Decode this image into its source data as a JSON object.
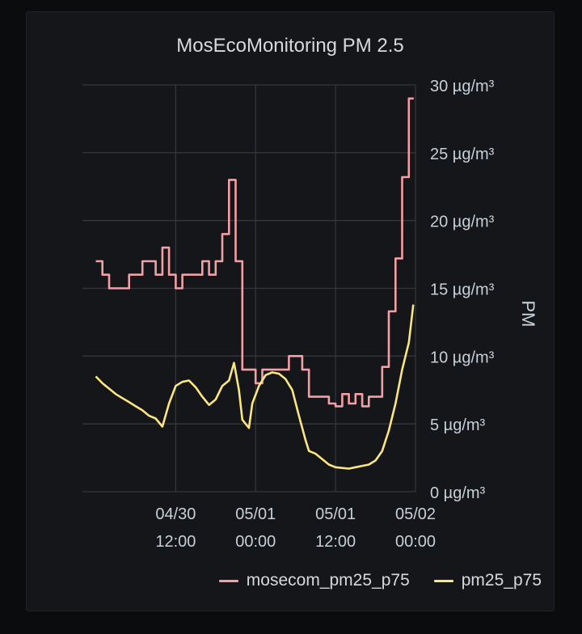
{
  "panel": {
    "title": "MosEcoMonitoring PM 2.5"
  },
  "colors": {
    "mosecom": "#f2a0a5",
    "pm25": "#fbe67f",
    "grid": "#33363b",
    "axis_text": "#c7d0d9"
  },
  "chart_data": {
    "type": "line",
    "title": "MosEcoMonitoring PM 2.5",
    "xlabel": "",
    "ylabel": "PM",
    "unit": "µg/m³",
    "ylim": [
      0,
      30
    ],
    "xlim": [
      "2020-04-29T22:00",
      "2020-05-02T00:00"
    ],
    "y_ticks": [
      "0 µg/m³",
      "5 µg/m³",
      "10 µg/m³",
      "15 µg/m³",
      "20 µg/m³",
      "25 µg/m³",
      "30 µg/m³"
    ],
    "x_ticks": [
      {
        "t": "2020-04-30T12:00",
        "line1": "04/30",
        "line2": "12:00"
      },
      {
        "t": "2020-05-01T00:00",
        "line1": "05/01",
        "line2": "00:00"
      },
      {
        "t": "2020-05-01T12:00",
        "line1": "05/01",
        "line2": "12:00"
      },
      {
        "t": "2020-05-02T00:00",
        "line1": "05/02",
        "line2": "00:00"
      }
    ],
    "grid": true,
    "y_axis_side": "right",
    "legend": "bottom-right",
    "series": [
      {
        "name": "mosecom_pm25_p75",
        "color": "#f2a0a5",
        "step": true,
        "points": [
          [
            "2020-04-30T00:00",
            17
          ],
          [
            "2020-04-30T01:00",
            16
          ],
          [
            "2020-04-30T02:00",
            15
          ],
          [
            "2020-04-30T05:00",
            16
          ],
          [
            "2020-04-30T07:00",
            17
          ],
          [
            "2020-04-30T09:00",
            16
          ],
          [
            "2020-04-30T10:00",
            18
          ],
          [
            "2020-04-30T11:00",
            16
          ],
          [
            "2020-04-30T12:00",
            15
          ],
          [
            "2020-04-30T13:00",
            16
          ],
          [
            "2020-04-30T16:00",
            17
          ],
          [
            "2020-04-30T17:00",
            16
          ],
          [
            "2020-04-30T18:00",
            17
          ],
          [
            "2020-04-30T19:00",
            19
          ],
          [
            "2020-04-30T20:00",
            23
          ],
          [
            "2020-04-30T21:00",
            17
          ],
          [
            "2020-04-30T22:00",
            9
          ],
          [
            "2020-04-30T23:00",
            9
          ],
          [
            "2020-05-01T00:00",
            8
          ],
          [
            "2020-05-01T01:00",
            9
          ],
          [
            "2020-05-01T05:00",
            10
          ],
          [
            "2020-05-01T07:00",
            9
          ],
          [
            "2020-05-01T08:00",
            7
          ],
          [
            "2020-05-01T11:00",
            6.5
          ],
          [
            "2020-05-01T12:00",
            6.3
          ],
          [
            "2020-05-01T13:00",
            7.2
          ],
          [
            "2020-05-01T14:00",
            6.5
          ],
          [
            "2020-05-01T15:00",
            7.2
          ],
          [
            "2020-05-01T16:00",
            6.3
          ],
          [
            "2020-05-01T17:00",
            7
          ],
          [
            "2020-05-01T19:00",
            9.2
          ],
          [
            "2020-05-01T20:00",
            13.3
          ],
          [
            "2020-05-01T21:00",
            17.2
          ],
          [
            "2020-05-01T22:00",
            23.2
          ],
          [
            "2020-05-01T23:00",
            29
          ]
        ],
        "end": "2020-05-01T23:00"
      },
      {
        "name": "pm25_p75",
        "color": "#fbe67f",
        "step": false,
        "points": [
          [
            "2020-04-30T00:00",
            8.5
          ],
          [
            "2020-04-30T01:00",
            8
          ],
          [
            "2020-04-30T02:00",
            7.6
          ],
          [
            "2020-04-30T03:00",
            7.2
          ],
          [
            "2020-04-30T04:00",
            6.9
          ],
          [
            "2020-04-30T05:00",
            6.6
          ],
          [
            "2020-04-30T06:00",
            6.3
          ],
          [
            "2020-04-30T07:00",
            6
          ],
          [
            "2020-04-30T08:00",
            5.6
          ],
          [
            "2020-04-30T09:00",
            5.4
          ],
          [
            "2020-04-30T10:00",
            4.8
          ],
          [
            "2020-04-30T11:00",
            6.5
          ],
          [
            "2020-04-30T12:00",
            7.8
          ],
          [
            "2020-04-30T13:00",
            8.1
          ],
          [
            "2020-04-30T14:00",
            8.2
          ],
          [
            "2020-04-30T15:00",
            7.7
          ],
          [
            "2020-04-30T16:00",
            7
          ],
          [
            "2020-04-30T17:00",
            6.4
          ],
          [
            "2020-04-30T18:00",
            6.8
          ],
          [
            "2020-04-30T19:00",
            7.8
          ],
          [
            "2020-04-30T20:00",
            8.2
          ],
          [
            "2020-04-30T20:45",
            9.5
          ],
          [
            "2020-04-30T21:30",
            7.5
          ],
          [
            "2020-04-30T22:00",
            5.3
          ],
          [
            "2020-04-30T23:00",
            4.7
          ],
          [
            "2020-04-30T23:30",
            6.5
          ],
          [
            "2020-05-01T00:30",
            7.8
          ],
          [
            "2020-05-01T01:30",
            8.6
          ],
          [
            "2020-05-01T02:30",
            8.8
          ],
          [
            "2020-05-01T03:30",
            8.7
          ],
          [
            "2020-05-01T04:30",
            8.3
          ],
          [
            "2020-05-01T05:30",
            7.5
          ],
          [
            "2020-05-01T06:30",
            5.6
          ],
          [
            "2020-05-01T07:30",
            3.8
          ],
          [
            "2020-05-01T08:00",
            3
          ],
          [
            "2020-05-01T09:00",
            2.8
          ],
          [
            "2020-05-01T10:00",
            2.4
          ],
          [
            "2020-05-01T11:00",
            2.0
          ],
          [
            "2020-05-01T12:00",
            1.8
          ],
          [
            "2020-05-01T13:00",
            1.75
          ],
          [
            "2020-05-01T14:00",
            1.7
          ],
          [
            "2020-05-01T15:00",
            1.8
          ],
          [
            "2020-05-01T16:00",
            1.9
          ],
          [
            "2020-05-01T17:00",
            2.0
          ],
          [
            "2020-05-01T18:00",
            2.3
          ],
          [
            "2020-05-01T19:00",
            3
          ],
          [
            "2020-05-01T20:00",
            4.5
          ],
          [
            "2020-05-01T21:00",
            6.5
          ],
          [
            "2020-05-01T22:00",
            9
          ],
          [
            "2020-05-01T23:00",
            11
          ],
          [
            "2020-05-01T23:40",
            13.8
          ]
        ]
      }
    ]
  }
}
